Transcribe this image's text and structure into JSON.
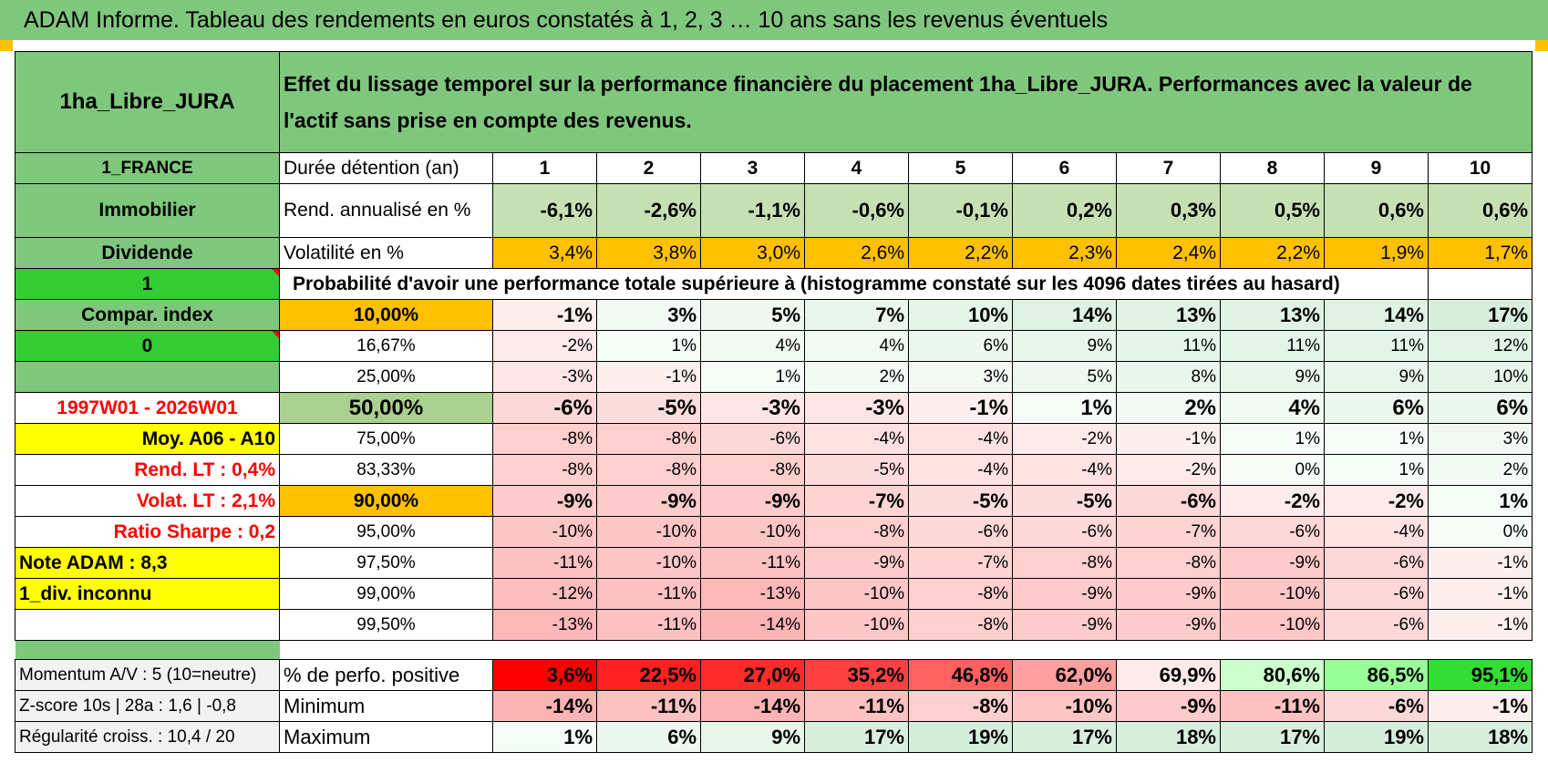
{
  "title": "ADAM Informe. Tableau des rendements en euros constatés à 1, 2, 3 … 10 ans sans les revenus éventuels",
  "asset_name": "1ha_Libre_JURA",
  "description": "Effet du lissage temporel sur la performance financière du placement 1ha_Libre_JURA. Performances avec la valeur de l'actif sans prise en compte des revenus.",
  "left": {
    "country": "1_FRANCE",
    "category": "Immobilier",
    "dividend_label": "Dividende",
    "dividend_value": "1",
    "compar_label": "Compar. index",
    "compar_value": "0",
    "period": "1997W01 - 2026W01",
    "moy": "Moy. A06 - A10",
    "rend_lt": "Rend. LT :    0,4%",
    "volat_lt": "Volat. LT :    2,1%",
    "sharpe": "Ratio Sharpe :     0,2",
    "note": "Note ADAM : 8,3",
    "div": "1_div. inconnu",
    "momentum": "Momentum A/V : 5 (10=neutre)",
    "zscore": "Z-score 10s | 28a : 1,6 | -0,8",
    "regularite": "Régularité croiss. : 10,4 / 20"
  },
  "durations_label": "Durée détention (an)",
  "durations": [
    "1",
    "2",
    "3",
    "4",
    "5",
    "6",
    "7",
    "8",
    "9",
    "10"
  ],
  "rend_label": "Rend. annualisé en %",
  "rend": [
    "-6,1%",
    "-2,6%",
    "-1,1%",
    "-0,6%",
    "-0,1%",
    "0,2%",
    "0,3%",
    "0,5%",
    "0,6%",
    "0,6%"
  ],
  "vol_label": "Volatilité en %",
  "vol": [
    "3,4%",
    "3,8%",
    "3,0%",
    "2,6%",
    "2,2%",
    "2,3%",
    "2,4%",
    "2,2%",
    "1,9%",
    "1,7%"
  ],
  "prob_title": "Probabilité d'avoir une performance totale supérieure à (histogramme constaté sur les 4096 dates tirées au hasard)",
  "quantiles": [
    {
      "p": "10,00%",
      "v": [
        "-1%",
        "3%",
        "5%",
        "7%",
        "10%",
        "14%",
        "13%",
        "13%",
        "14%",
        "17%"
      ]
    },
    {
      "p": "16,67%",
      "v": [
        "-2%",
        "1%",
        "4%",
        "4%",
        "6%",
        "9%",
        "11%",
        "11%",
        "11%",
        "12%"
      ]
    },
    {
      "p": "25,00%",
      "v": [
        "-3%",
        "-1%",
        "1%",
        "2%",
        "3%",
        "5%",
        "8%",
        "9%",
        "9%",
        "10%"
      ]
    },
    {
      "p": "50,00%",
      "v": [
        "-6%",
        "-5%",
        "-3%",
        "-3%",
        "-1%",
        "1%",
        "2%",
        "4%",
        "6%",
        "6%"
      ]
    },
    {
      "p": "75,00%",
      "v": [
        "-8%",
        "-8%",
        "-6%",
        "-4%",
        "-4%",
        "-2%",
        "-1%",
        "1%",
        "1%",
        "3%"
      ]
    },
    {
      "p": "83,33%",
      "v": [
        "-8%",
        "-8%",
        "-8%",
        "-5%",
        "-4%",
        "-4%",
        "-2%",
        "0%",
        "1%",
        "2%"
      ]
    },
    {
      "p": "90,00%",
      "v": [
        "-9%",
        "-9%",
        "-9%",
        "-7%",
        "-5%",
        "-5%",
        "-6%",
        "-2%",
        "-2%",
        "1%"
      ]
    },
    {
      "p": "95,00%",
      "v": [
        "-10%",
        "-10%",
        "-10%",
        "-8%",
        "-6%",
        "-6%",
        "-7%",
        "-6%",
        "-4%",
        "0%"
      ]
    },
    {
      "p": "97,50%",
      "v": [
        "-11%",
        "-10%",
        "-11%",
        "-9%",
        "-7%",
        "-8%",
        "-8%",
        "-9%",
        "-6%",
        "-1%"
      ]
    },
    {
      "p": "99,00%",
      "v": [
        "-12%",
        "-11%",
        "-13%",
        "-10%",
        "-8%",
        "-9%",
        "-9%",
        "-10%",
        "-6%",
        "-1%"
      ]
    },
    {
      "p": "99,50%",
      "v": [
        "-13%",
        "-11%",
        "-14%",
        "-10%",
        "-8%",
        "-9%",
        "-9%",
        "-10%",
        "-6%",
        "-1%"
      ]
    }
  ],
  "pos_label": "% de perfo. positive",
  "pos": [
    "3,6%",
    "22,5%",
    "27,0%",
    "35,2%",
    "46,8%",
    "62,0%",
    "69,9%",
    "80,6%",
    "86,5%",
    "95,1%"
  ],
  "pos_colors": [
    "#ff0000",
    "#ff2020",
    "#ff2a2a",
    "#ff4040",
    "#ff6060",
    "#ffa0a0",
    "#ffeaea",
    "#ccffcc",
    "#99ff99",
    "#33dd33"
  ],
  "min_label": "Minimum",
  "min": [
    "-14%",
    "-11%",
    "-14%",
    "-11%",
    "-8%",
    "-10%",
    "-9%",
    "-11%",
    "-6%",
    "-1%"
  ],
  "max_label": "Maximum",
  "max": [
    "1%",
    "6%",
    "9%",
    "17%",
    "19%",
    "17%",
    "18%",
    "17%",
    "19%",
    "18%"
  ]
}
